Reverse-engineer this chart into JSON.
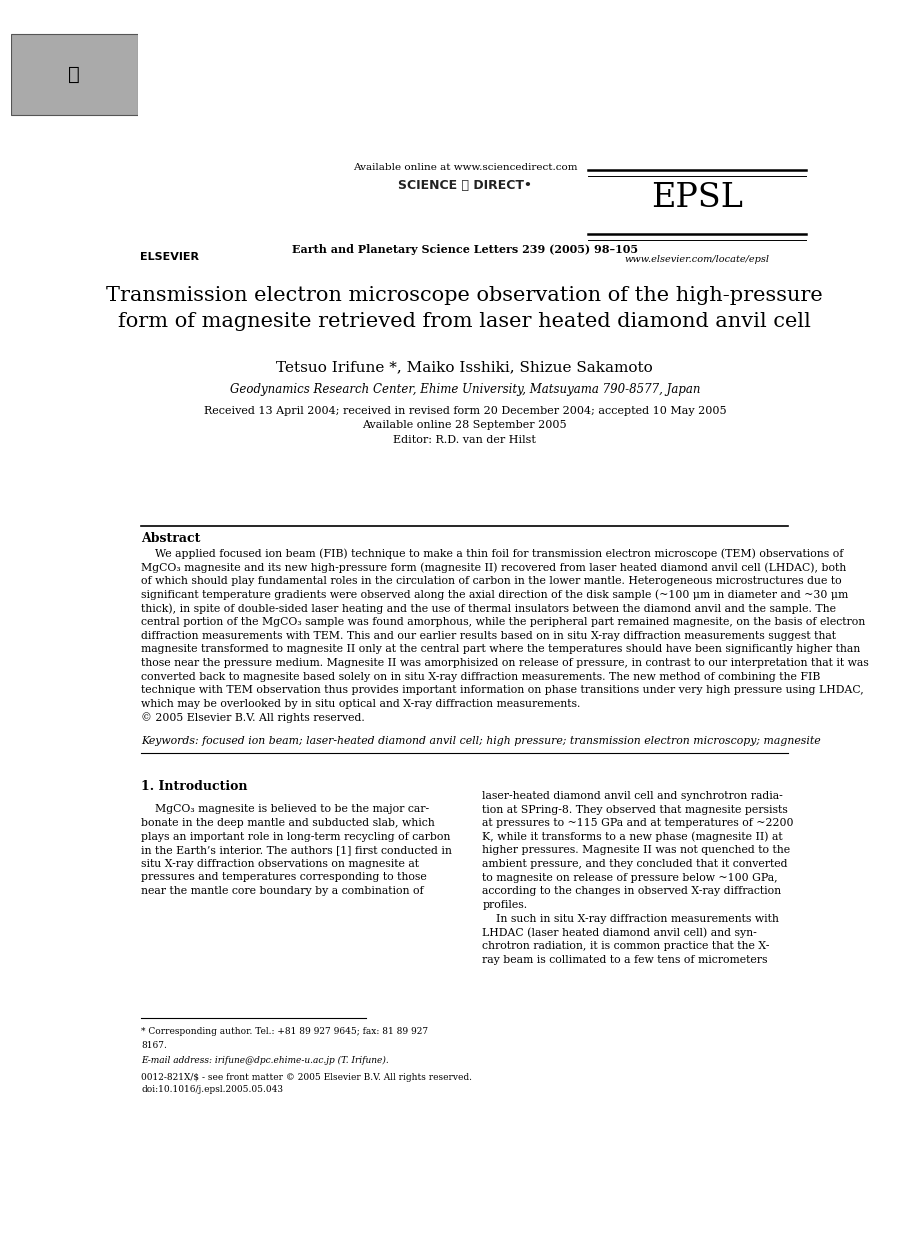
{
  "bg_color": "#ffffff",
  "header": {
    "available_online": "Available online at www.sciencedirect.com",
    "journal_info": "Earth and Planetary Science Letters 239 (2005) 98–105",
    "epsl": "EPSL",
    "website": "www.elsevier.com/locate/epsl",
    "elsevier": "ELSEVIER"
  },
  "title": "Transmission electron microscope observation of the high-pressure\nform of magnesite retrieved from laser heated diamond anvil cell",
  "authors": "Tetsuo Irifune *, Maiko Isshiki, Shizue Sakamoto",
  "affiliation": "Geodynamics Research Center, Ehime University, Matsuyama 790-8577, Japan",
  "received": "Received 13 April 2004; received in revised form 20 December 2004; accepted 10 May 2005",
  "available": "Available online 28 September 2005",
  "editor": "Editor: R.D. van der Hilst",
  "abstract_title": "Abstract",
  "keywords": "Keywords: focused ion beam; laser-heated diamond anvil cell; high pressure; transmission electron microscopy; magnesite",
  "section1_title": "1. Introduction",
  "footnote1": "* Corresponding author. Tel.: +81 89 927 9645; fax: 81 89 927",
  "footnote1b": "8167.",
  "footnote2": "E-mail address: irifune@dpc.ehime-u.ac.jp (T. Irifune).",
  "footnote3": "0012-821X/$ - see front matter © 2005 Elsevier B.V. All rights reserved.",
  "footnote4": "doi:10.1016/j.epsl.2005.05.043",
  "abstract_lines": [
    "    We applied focused ion beam (FIB) technique to make a thin foil for transmission electron microscope (TEM) observations of",
    "MgCO₃ magnesite and its new high-pressure form (magnesite II) recovered from laser heated diamond anvil cell (LHDAC), both",
    "of which should play fundamental roles in the circulation of carbon in the lower mantle. Heterogeneous microstructures due to",
    "significant temperature gradients were observed along the axial direction of the disk sample (~100 μm in diameter and ~30 μm",
    "thick), in spite of double-sided laser heating and the use of thermal insulators between the diamond anvil and the sample. The",
    "central portion of the MgCO₃ sample was found amorphous, while the peripheral part remained magnesite, on the basis of electron",
    "diffraction measurements with TEM. This and our earlier results based on in situ X-ray diffraction measurements suggest that",
    "magnesite transformed to magnesite II only at the central part where the temperatures should have been significantly higher than",
    "those near the pressure medium. Magnesite II was amorphisized on release of pressure, in contrast to our interpretation that it was",
    "converted back to magnesite based solely on in situ X-ray diffraction measurements. The new method of combining the FIB",
    "technique with TEM observation thus provides important information on phase transitions under very high pressure using LHDAC,",
    "which may be overlooked by in situ optical and X-ray diffraction measurements.",
    "© 2005 Elsevier B.V. All rights reserved."
  ],
  "col1_lines": [
    "    MgCO₃ magnesite is believed to be the major car-",
    "bonate in the deep mantle and subducted slab, which",
    "plays an important role in long-term recycling of carbon",
    "in the Earth’s interior. The authors [1] first conducted in",
    "situ X-ray diffraction observations on magnesite at",
    "pressures and temperatures corresponding to those",
    "near the mantle core boundary by a combination of"
  ],
  "col2_lines": [
    "laser-heated diamond anvil cell and synchrotron radia-",
    "tion at SPring-8. They observed that magnesite persists",
    "at pressures to ~115 GPa and at temperatures of ~2200",
    "K, while it transforms to a new phase (magnesite II) at",
    "higher pressures. Magnesite II was not quenched to the",
    "ambient pressure, and they concluded that it converted",
    "to magnesite on release of pressure below ~100 GPa,",
    "according to the changes in observed X-ray diffraction",
    "profiles.",
    "    In such in situ X-ray diffraction measurements with",
    "LHDAC (laser heated diamond anvil cell) and syn-",
    "chrotron radiation, it is common practice that the X-",
    "ray beam is collimated to a few tens of micrometers"
  ]
}
